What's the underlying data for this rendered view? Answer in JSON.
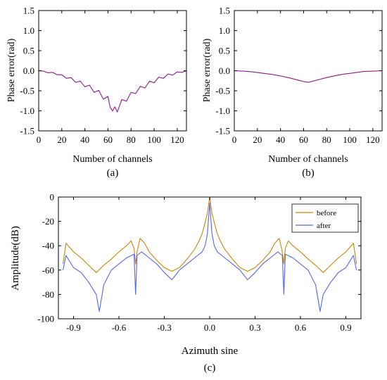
{
  "chart_data": [
    {
      "type": "line",
      "caption": "(a)",
      "xlabel": "Number of channels",
      "ylabel": "Phase error(rad)",
      "xlim": [
        0,
        128
      ],
      "ylim": [
        -1.5,
        1.5
      ],
      "xticks": [
        0,
        20,
        40,
        60,
        80,
        100,
        120
      ],
      "yticks": [
        -1.5,
        -1.0,
        -0.5,
        0.0,
        0.5,
        1.0,
        1.5
      ],
      "xtick_labels": [
        "0",
        "20",
        "40",
        "60",
        "80",
        "100",
        "120"
      ],
      "ytick_labels": [
        "-1.5",
        "-1.0",
        "-0.5",
        "0.0",
        "0.5",
        "1.0",
        "1.5"
      ],
      "color": "#8b1a89",
      "series": [
        {
          "x": [
            0,
            4,
            8,
            12,
            16,
            20,
            24,
            28,
            32,
            36,
            40,
            44,
            48,
            52,
            56,
            60,
            62,
            64,
            66,
            68,
            72,
            76,
            80,
            84,
            88,
            92,
            96,
            100,
            104,
            108,
            112,
            116,
            120,
            124,
            128
          ],
          "values": [
            0.0,
            -0.01,
            -0.05,
            -0.04,
            -0.1,
            -0.1,
            -0.19,
            -0.17,
            -0.29,
            -0.26,
            -0.4,
            -0.36,
            -0.54,
            -0.49,
            -0.71,
            -0.64,
            -0.92,
            -1.0,
            -0.9,
            -1.03,
            -0.72,
            -0.76,
            -0.54,
            -0.57,
            -0.39,
            -0.43,
            -0.26,
            -0.3,
            -0.16,
            -0.19,
            -0.08,
            -0.11,
            -0.03,
            -0.04,
            0.0
          ]
        }
      ]
    },
    {
      "type": "line",
      "caption": "(b)",
      "xlabel": "Number of channels",
      "ylabel": "Phase error(rad)",
      "xlim": [
        0,
        128
      ],
      "ylim": [
        -1.5,
        1.5
      ],
      "xticks": [
        0,
        20,
        40,
        60,
        80,
        100,
        120
      ],
      "yticks": [
        -1.5,
        -1.0,
        -0.5,
        0.0,
        0.5,
        1.0,
        1.5
      ],
      "xtick_labels": [
        "0",
        "20",
        "40",
        "60",
        "80",
        "100",
        "120"
      ],
      "ytick_labels": [
        "-1.5",
        "-1.0",
        "-0.5",
        "0.0",
        "0.5",
        "1.0",
        "1.5"
      ],
      "color": "#8b1a89",
      "series": [
        {
          "x": [
            0,
            8,
            16,
            24,
            32,
            40,
            48,
            56,
            60,
            64,
            68,
            72,
            80,
            88,
            96,
            104,
            112,
            120,
            128
          ],
          "values": [
            0.0,
            -0.01,
            -0.03,
            -0.06,
            -0.09,
            -0.13,
            -0.18,
            -0.24,
            -0.27,
            -0.29,
            -0.26,
            -0.23,
            -0.17,
            -0.12,
            -0.08,
            -0.05,
            -0.02,
            -0.01,
            0.0
          ]
        }
      ]
    },
    {
      "type": "line",
      "caption": "(c)",
      "xlabel": "Azimuth sine",
      "ylabel": "Amplitude(dB)",
      "xlim": [
        -1.0,
        1.0
      ],
      "ylim": [
        -100,
        0
      ],
      "xticks": [
        -0.9,
        -0.6,
        -0.3,
        0.0,
        0.3,
        0.6,
        0.9
      ],
      "yticks": [
        0,
        -20,
        -40,
        -60,
        -80,
        -100
      ],
      "xtick_labels": [
        "-0.9",
        "-0.6",
        "-0.3",
        "0.0",
        "0.3",
        "0.6",
        "0.9"
      ],
      "ytick_labels": [
        "0",
        "-20",
        "-40",
        "-60",
        "-80",
        "-100"
      ],
      "legend": {
        "placement": "top-right",
        "entries": [
          "before",
          "after"
        ]
      },
      "series": [
        {
          "name": "before",
          "color": "#c8860a",
          "x": [
            -0.97,
            -0.95,
            -0.9,
            -0.85,
            -0.8,
            -0.75,
            -0.7,
            -0.65,
            -0.6,
            -0.55,
            -0.52,
            -0.5,
            -0.49,
            -0.48,
            -0.46,
            -0.43,
            -0.4,
            -0.35,
            -0.3,
            -0.25,
            -0.2,
            -0.15,
            -0.1,
            -0.07,
            -0.05,
            -0.03,
            -0.015,
            0.0,
            0.015,
            0.03,
            0.05,
            0.07,
            0.1,
            0.15,
            0.2,
            0.25,
            0.3,
            0.35,
            0.4,
            0.43,
            0.46,
            0.48,
            0.49,
            0.5,
            0.52,
            0.55,
            0.6,
            0.65,
            0.7,
            0.75,
            0.8,
            0.85,
            0.9,
            0.95,
            0.97
          ],
          "values": [
            -55,
            -38,
            -45,
            -50,
            -56,
            -62,
            -56,
            -51,
            -45,
            -40,
            -36,
            -42,
            -55,
            -45,
            -34,
            -38,
            -45,
            -52,
            -58,
            -61,
            -58,
            -51,
            -43,
            -36,
            -30,
            -21,
            -13,
            0,
            -13,
            -21,
            -30,
            -36,
            -43,
            -51,
            -58,
            -61,
            -58,
            -52,
            -45,
            -38,
            -34,
            -45,
            -55,
            -42,
            -36,
            -40,
            -45,
            -51,
            -56,
            -62,
            -56,
            -50,
            -45,
            -38,
            -55
          ]
        },
        {
          "name": "after",
          "color": "#5566ee",
          "x": [
            -0.97,
            -0.95,
            -0.9,
            -0.85,
            -0.8,
            -0.75,
            -0.73,
            -0.7,
            -0.65,
            -0.6,
            -0.55,
            -0.5,
            -0.49,
            -0.48,
            -0.45,
            -0.4,
            -0.35,
            -0.3,
            -0.25,
            -0.2,
            -0.15,
            -0.1,
            -0.05,
            -0.03,
            -0.015,
            0.0,
            0.015,
            0.03,
            0.05,
            0.1,
            0.15,
            0.2,
            0.25,
            0.3,
            0.35,
            0.4,
            0.45,
            0.48,
            0.49,
            0.5,
            0.55,
            0.6,
            0.65,
            0.7,
            0.73,
            0.75,
            0.8,
            0.85,
            0.9,
            0.95,
            0.97
          ],
          "values": [
            -60,
            -48,
            -58,
            -62,
            -70,
            -80,
            -94,
            -72,
            -60,
            -55,
            -50,
            -47,
            -80,
            -48,
            -45,
            -50,
            -55,
            -62,
            -68,
            -60,
            -55,
            -50,
            -45,
            -40,
            -30,
            -5,
            -30,
            -40,
            -45,
            -50,
            -55,
            -60,
            -68,
            -62,
            -55,
            -50,
            -45,
            -48,
            -80,
            -47,
            -50,
            -55,
            -60,
            -72,
            -94,
            -80,
            -70,
            -62,
            -58,
            -48,
            -60
          ]
        }
      ]
    }
  ]
}
